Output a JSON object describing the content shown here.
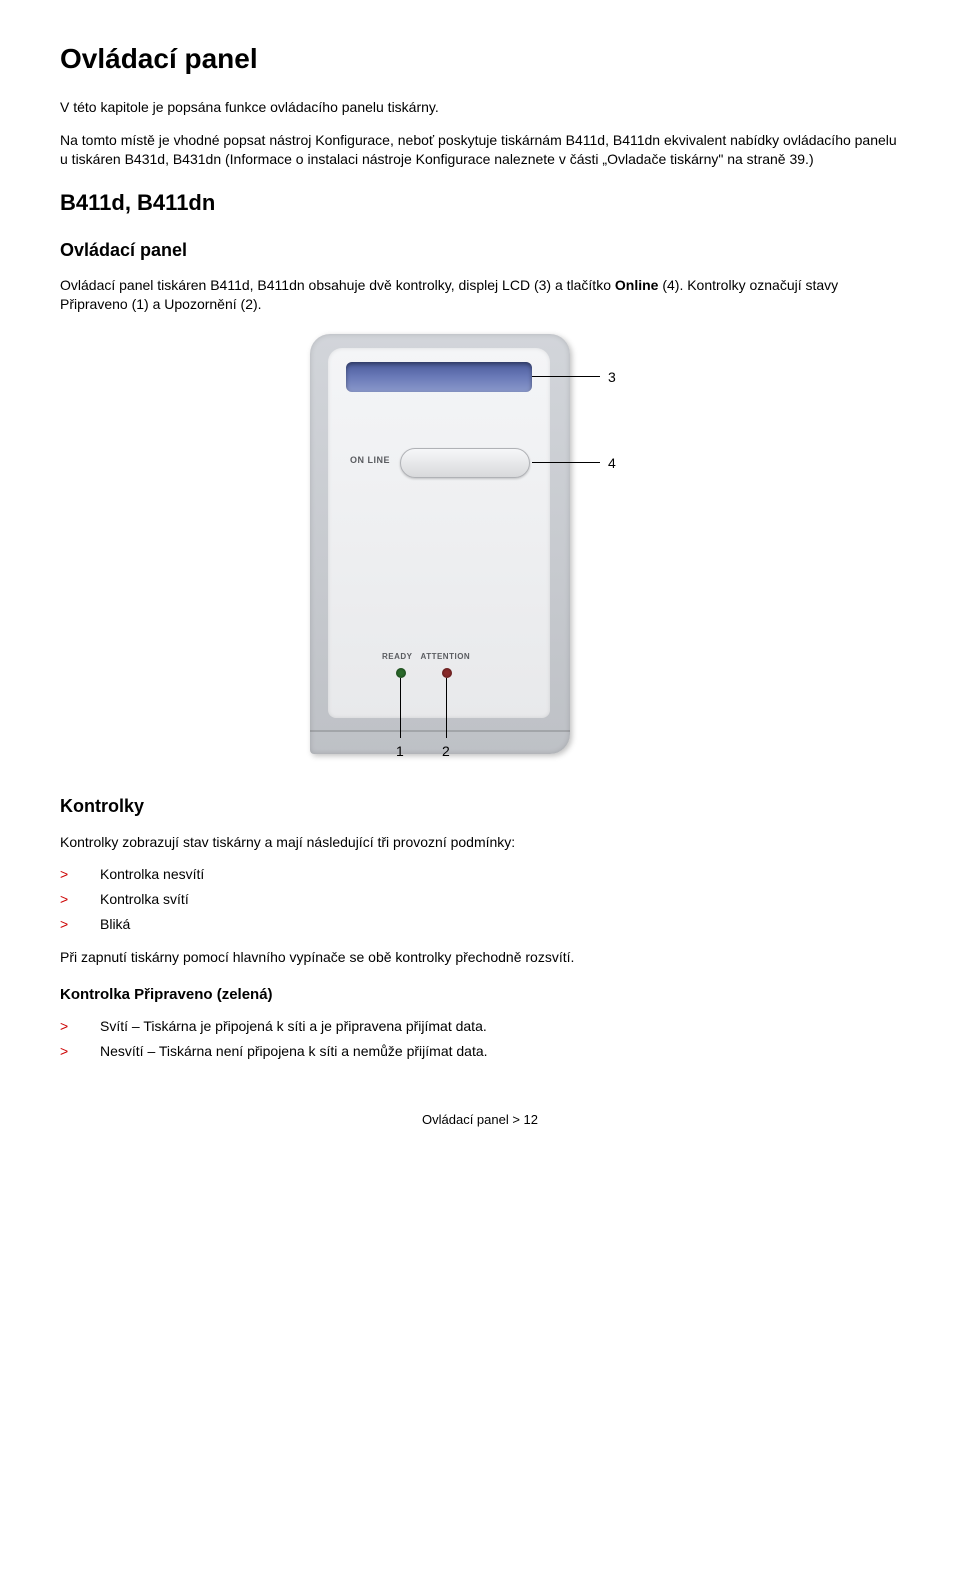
{
  "title": "Ovládací panel",
  "intro1": "V této kapitole je popsána funkce ovládacího panelu tiskárny.",
  "intro2": "Na tomto místě je vhodné popsat nástroj Konfigurace, neboť poskytuje tiskárnám B411d, B411dn ekvivalent nabídky ovládacího panelu u tiskáren B431d, B431dn (Informace o instalaci nástroje Konfigurace naleznete v části „Ovladače tiskárny\" na straně 39.)",
  "section_models": "B411d, B411dn",
  "section_panel": "Ovládací panel",
  "panel_desc_a": "Ovládací panel tiskáren B411d, B411dn obsahuje dvě kontrolky, displej LCD (3) a tlačítko ",
  "panel_desc_bold": "Online",
  "panel_desc_b": " (4). Kontrolky označují stavy Připraveno (1) a Upozornění (2).",
  "figure": {
    "labels": {
      "online": "ON LINE",
      "ready": "READY",
      "attention": "ATTENTION"
    },
    "callouts": {
      "c1": "1",
      "c2": "2",
      "c3": "3",
      "c4": "4"
    },
    "colors": {
      "body_light": "#d2d5da",
      "body_dark": "#bec1c6",
      "inner_light": "#f4f5f7",
      "inner_dark": "#e8e9eb",
      "lcd_dark": "#4a5a9a",
      "lcd_light": "#8a98ca",
      "led_ready": "#2a6a2a",
      "led_attn": "#8a2a2a",
      "label_text": "#5a5c60"
    }
  },
  "section_leds": "Kontrolky",
  "leds_intro": "Kontrolky zobrazují stav tiskárny a mají následující tři provozní podmínky:",
  "leds_items": [
    "Kontrolka nesvítí",
    "Kontrolka svítí",
    "Bliká"
  ],
  "leds_after": "Při zapnutí tiskárny pomocí hlavního vypínače se obě kontrolky přechodně rozsvítí.",
  "section_ready": "Kontrolka Připraveno (zelená)",
  "ready_items": [
    "Svítí – Tiskárna je připojená k síti a je připravena přijímat data.",
    "Nesvítí – Tiskárna není připojena k síti a nemůže přijímat data."
  ],
  "footer": "Ovládací panel > 12",
  "bullet_marker": ">"
}
